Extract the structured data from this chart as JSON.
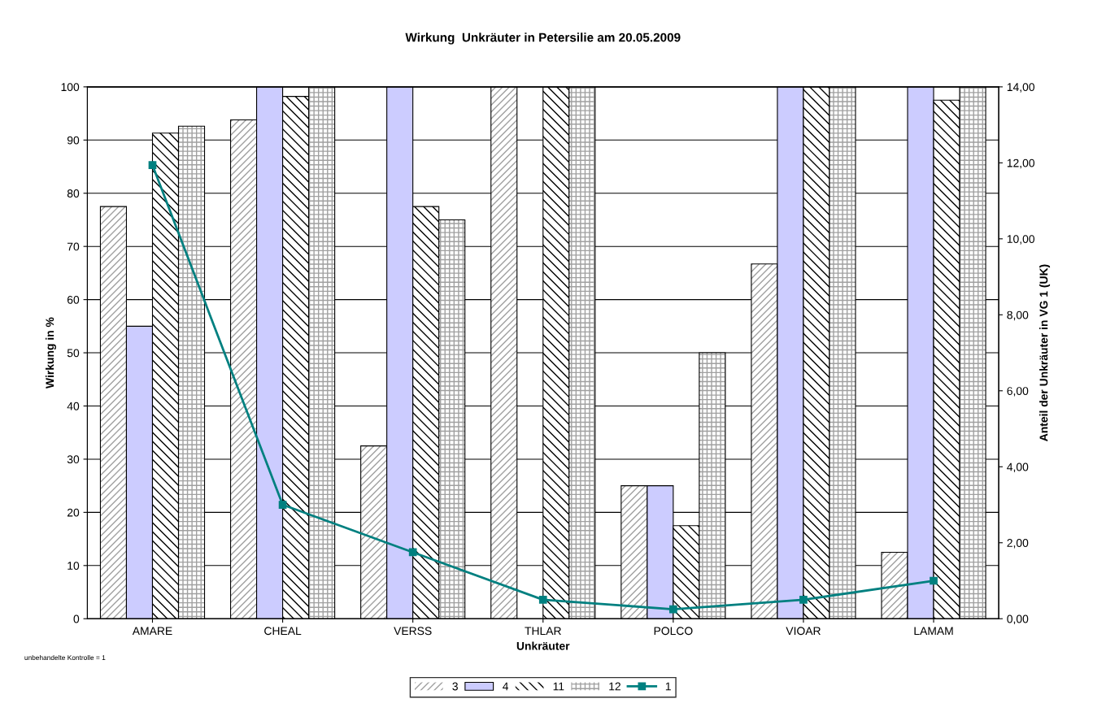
{
  "chart_data": {
    "type": "bar",
    "title": "Wirkung  Unkräuter in Petersilie am 20.05.2009",
    "xlabel": "Unkräuter",
    "ylabel": "Wirkung in %",
    "y2label": "Anteil der Unkräuter in VG 1 (UK)",
    "categories": [
      "AMARE",
      "CHEAL",
      "VERSS",
      "THLAR",
      "POLCO",
      "VIOAR",
      "LAMAM"
    ],
    "series": [
      {
        "name": "3",
        "color": "#a0a0a0",
        "values": [
          77.5,
          93.8,
          32.5,
          100,
          25,
          66.7,
          12.5
        ]
      },
      {
        "name": "4",
        "color": "#ccccff",
        "values": [
          55,
          100,
          100,
          null,
          25,
          100,
          100
        ]
      },
      {
        "name": "11",
        "color": "#000000",
        "values": [
          91.3,
          98.2,
          77.5,
          100,
          17.5,
          100,
          97.5
        ]
      },
      {
        "name": "12",
        "color": "#a0a0a0",
        "values": [
          92.6,
          100,
          75,
          100,
          50,
          100,
          100
        ]
      },
      {
        "name": "1",
        "type": "line",
        "axis": "y2",
        "color": "#008080",
        "marker": "square",
        "values": [
          11.94,
          3.0,
          1.75,
          0.5,
          0.25,
          0.5,
          1.0
        ]
      }
    ],
    "ylim": [
      0,
      100
    ],
    "yticks": [
      0,
      10,
      20,
      30,
      40,
      50,
      60,
      70,
      80,
      90,
      100
    ],
    "y2lim": [
      0,
      14
    ],
    "y2ticks": [
      {
        "value": 0,
        "label": "0,00"
      },
      {
        "value": 2,
        "label": "2,00"
      },
      {
        "value": 4,
        "label": "4,00"
      },
      {
        "value": 6,
        "label": "6,00"
      },
      {
        "value": 8,
        "label": "8,00"
      },
      {
        "value": 10,
        "label": "10,00"
      },
      {
        "value": 12,
        "label": "12,00"
      },
      {
        "value": 14,
        "label": "14,00"
      }
    ],
    "grid": "y",
    "legend": "bottom",
    "annotations": [
      "unbehandelte Kontrolle = 1"
    ]
  }
}
